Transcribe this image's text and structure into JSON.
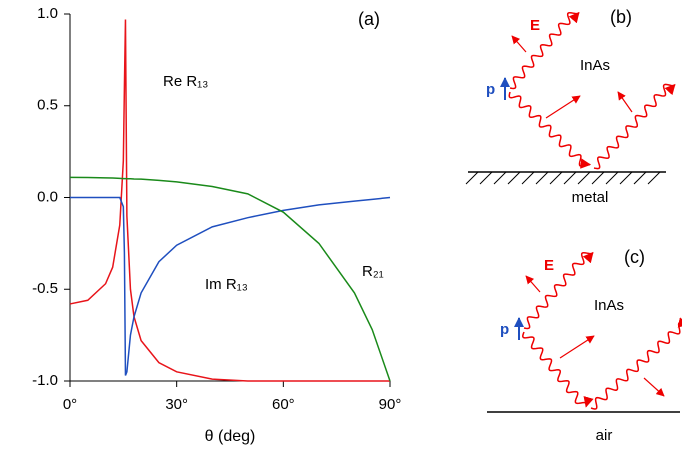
{
  "chart_data": {
    "type": "line",
    "title": "(a)",
    "x_label": "θ (deg)",
    "x": [
      0,
      5,
      10,
      12,
      14,
      15,
      15.3,
      15.6,
      16,
      17,
      18,
      20,
      25,
      30,
      40,
      50,
      60,
      70,
      80,
      85,
      90
    ],
    "series": [
      {
        "name": "Re R₁₃",
        "color": "#e8141a",
        "values": [
          -0.58,
          -0.56,
          -0.47,
          -0.38,
          -0.15,
          0.2,
          0.6,
          0.97,
          -0.1,
          -0.5,
          -0.65,
          -0.78,
          -0.9,
          -0.95,
          -0.99,
          -1,
          -1,
          -1,
          -1,
          -1,
          -1
        ]
      },
      {
        "name": "Im R₁₃",
        "color": "#1f4fbf",
        "values": [
          0,
          0,
          0,
          0,
          0,
          -0.05,
          -0.3,
          -0.97,
          -0.95,
          -0.75,
          -0.65,
          -0.52,
          -0.35,
          -0.26,
          -0.16,
          -0.11,
          -0.07,
          -0.04,
          -0.02,
          -0.01,
          0
        ]
      },
      {
        "name": "R₂₁",
        "color": "#1a8a1a",
        "values": [
          0.11,
          0.109,
          0.107,
          0.106,
          0.104,
          0.103,
          0.103,
          0.103,
          0.102,
          0.102,
          0.101,
          0.1,
          0.093,
          0.085,
          0.06,
          0.02,
          -0.08,
          -0.25,
          -0.52,
          -0.72,
          -1
        ]
      }
    ],
    "xlim": [
      0,
      90
    ],
    "ylim": [
      -1,
      1
    ],
    "xticks": [
      {
        "value": 0,
        "label": "0°"
      },
      {
        "value": 30,
        "label": "30°"
      },
      {
        "value": 60,
        "label": "60°"
      },
      {
        "value": 90,
        "label": "90°"
      }
    ],
    "yticks": [
      {
        "value": 1,
        "label": "1.0"
      },
      {
        "value": 0.5,
        "label": "0.5"
      },
      {
        "value": 0,
        "label": "0.0"
      },
      {
        "value": -0.5,
        "label": "-0.5"
      },
      {
        "value": -1,
        "label": "-1.0"
      }
    ]
  },
  "diagrams": [
    {
      "label": "(b)",
      "field": "E",
      "polarization": "p",
      "medium": "InAs",
      "substrate": "metal"
    },
    {
      "label": "(c)",
      "field": "E",
      "polarization": "p",
      "medium": "InAs",
      "substrate": "air"
    }
  ]
}
